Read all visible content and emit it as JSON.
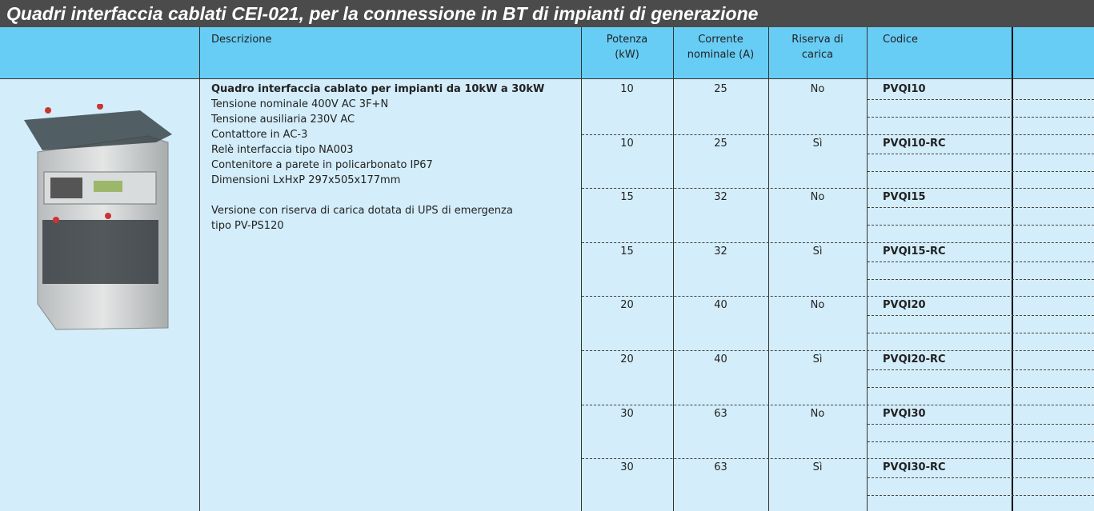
{
  "header": {
    "title": "Quadri interfaccia cablati CEI-021, per la connessione in BT di impianti di generazione"
  },
  "table": {
    "columns": [
      "Descrizione",
      "Potenza\n(kW)",
      "Corrente\nnominale (A)",
      "Riserva di\ncarica",
      "Codice"
    ],
    "description": [
      "Quadro interfaccia cablato per impianti da 10kW a 30kW",
      "Tensione nominale 400V AC 3F+N",
      "Tensione ausiliaria 230V AC",
      "Contattore in AC-3",
      "Relè interfaccia tipo NA003",
      "Contenitore a parete in policarbonato IP67",
      "Dimensioni LxHxP 297x505x177mm",
      "Versione con riserva di carica dotata di UPS di emergenza",
      "tipo PV-PS120"
    ],
    "rows": [
      [
        "10",
        "25",
        "No",
        "PVQI10"
      ],
      [
        "10",
        "25",
        "Sì",
        "PVQI10-RC"
      ],
      [
        "15",
        "32",
        "No",
        "PVQI15"
      ],
      [
        "15",
        "32",
        "Sì",
        "PVQI15-RC"
      ],
      [
        "20",
        "40",
        "No",
        "PVQI20"
      ],
      [
        "20",
        "40",
        "Sì",
        "PVQI20-RC"
      ],
      [
        "30",
        "63",
        "No",
        "PVQI30"
      ],
      [
        "30",
        "63",
        "Sì",
        "PVQI30-RC"
      ]
    ]
  }
}
